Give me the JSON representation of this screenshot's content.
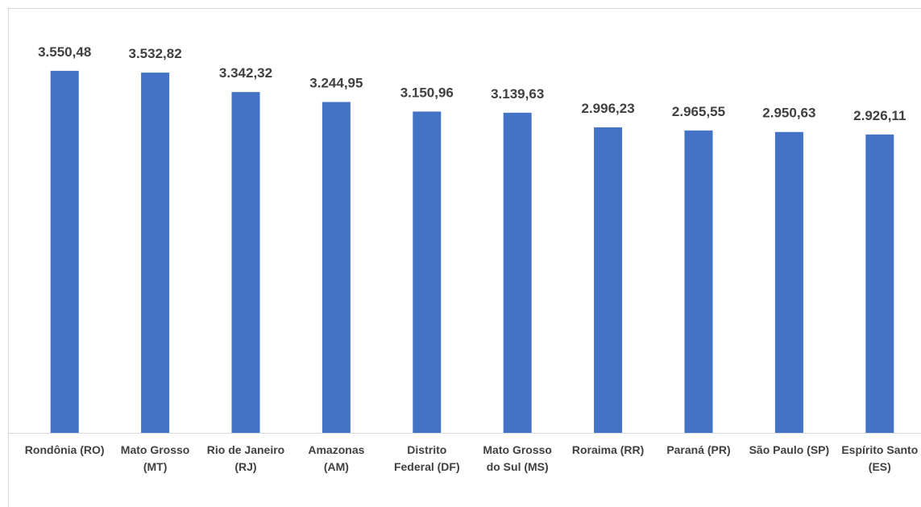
{
  "chart_data": {
    "type": "bar",
    "categories": [
      "Rondônia (RO)",
      "Mato Grosso (MT)",
      "Rio de Janeiro (RJ)",
      "Amazonas (AM)",
      "Distrito Federal (DF)",
      "Mato Grosso do Sul (MS)",
      "Roraima (RR)",
      "Paraná (PR)",
      "São Paulo (SP)",
      "Espírito Santo (ES)"
    ],
    "values": [
      3550.48,
      3532.82,
      3342.32,
      3244.95,
      3150.96,
      3139.63,
      2996.23,
      2965.55,
      2950.63,
      2926.11
    ],
    "value_labels": [
      "3.550,48",
      "3.532,82",
      "3.342,32",
      "3.244,95",
      "3.150,96",
      "3.139,63",
      "2.996,23",
      "2.965,55",
      "2.950,63",
      "2.926,11"
    ],
    "color": "#4472c4",
    "ylim": [
      0,
      4000
    ]
  }
}
